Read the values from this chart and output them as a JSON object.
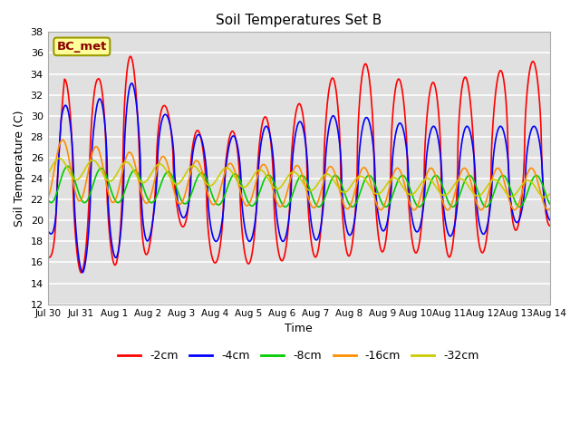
{
  "title": "Soil Temperatures Set B",
  "xlabel": "Time",
  "ylabel": "Soil Temperature (C)",
  "annotation": "BC_met",
  "ylim": [
    12,
    38
  ],
  "yticks": [
    12,
    14,
    16,
    18,
    20,
    22,
    24,
    26,
    28,
    30,
    32,
    34,
    36,
    38
  ],
  "x_tick_labels": [
    "Jul 30",
    "Jul 31",
    "Aug 1",
    "Aug 2",
    "Aug 3",
    "Aug 4",
    "Aug 5",
    "Aug 6",
    "Aug 7",
    "Aug 8",
    "Aug 9",
    "Aug 10",
    "Aug 11",
    "Aug 12",
    "Aug 13",
    "Aug 14"
  ],
  "colors": {
    "-2cm": "#FF0000",
    "-4cm": "#0000FF",
    "-8cm": "#00CC00",
    "-16cm": "#FF8C00",
    "-32cm": "#CCCC00"
  },
  "background_color": "#E0E0E0",
  "grid_color": "#FFFFFF",
  "series_labels": [
    "-2cm",
    "-4cm",
    "-8cm",
    "-16cm",
    "-32cm"
  ]
}
